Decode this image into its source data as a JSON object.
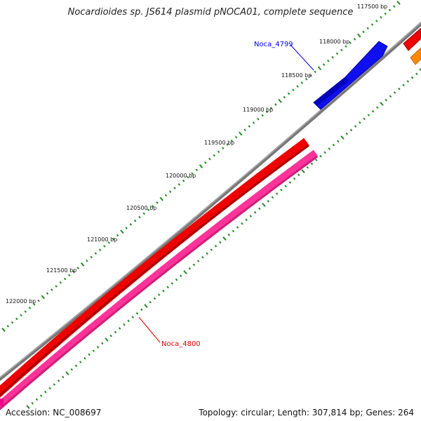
{
  "title": "Nocardioides sp. JS614 plasmid pNOCA01, complete sequence",
  "footer": {
    "accession": "Accession: NC_008697",
    "info": "Topology: circular; Length: 307,814 bp; Genes: 264"
  },
  "ticks": [
    {
      "label": "117500 bp"
    },
    {
      "label": "118000 bp"
    },
    {
      "label": "118500 bp"
    },
    {
      "label": "119000 bp"
    },
    {
      "label": "119500 bp"
    },
    {
      "label": "120000 bp"
    },
    {
      "label": "120500 bp"
    },
    {
      "label": "121000 bp"
    },
    {
      "label": "121500 bp"
    },
    {
      "label": "122000 bp"
    }
  ],
  "genes": [
    {
      "name": "Noca_4799",
      "color": "#0000ee"
    },
    {
      "name": "Noca_4800",
      "color": "#dd0000"
    }
  ],
  "colors": {
    "backbone": "#777777",
    "tick": "#228822",
    "forward_gene": "#ee0000",
    "reverse_gene": "#ff3399",
    "blue_gene": "#0000ee",
    "orange_gene": "#ff8800"
  }
}
